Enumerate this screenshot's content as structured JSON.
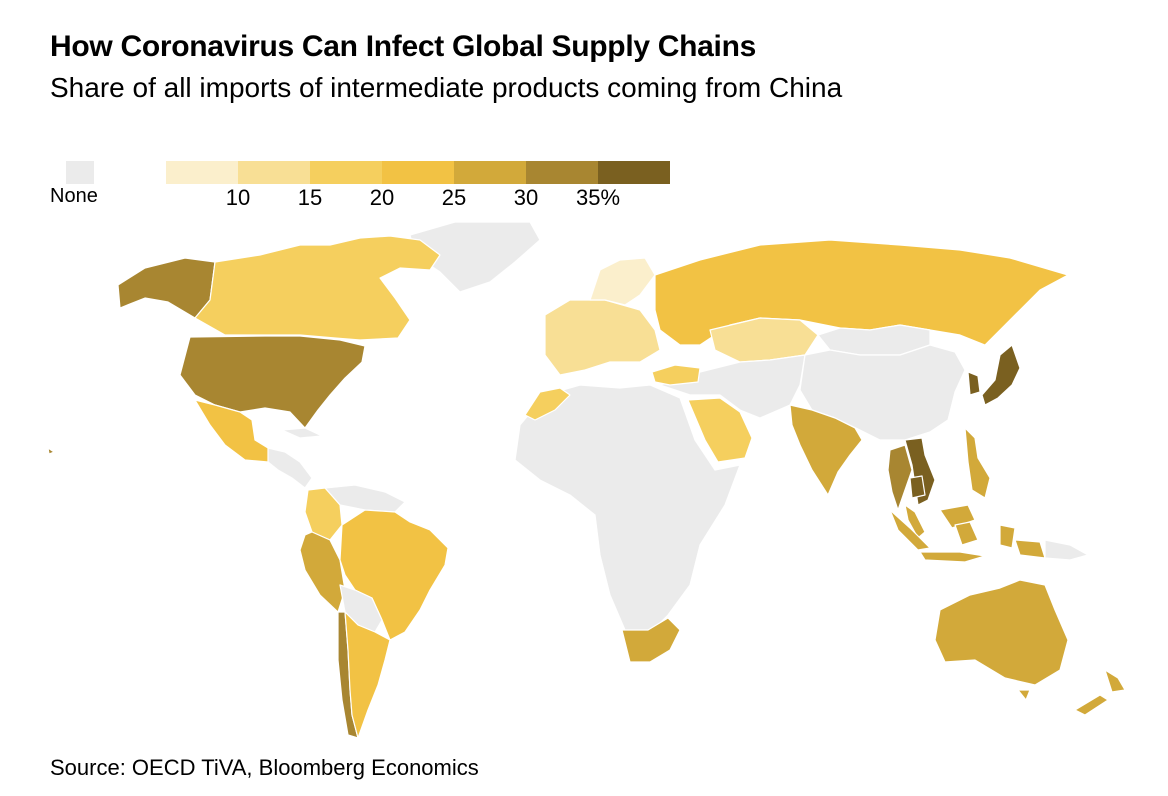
{
  "title": "How Coronavirus Can Infect Global Supply Chains",
  "subtitle": "Share of all imports of intermediate products coming from China",
  "source": "Source: OECD TiVA, Bloomberg Economics",
  "legend": {
    "none_label": "None",
    "none_color": "#ebebeb",
    "bins": [
      {
        "from": 5,
        "to": 10,
        "color": "#fbefcc"
      },
      {
        "from": 10,
        "to": 15,
        "color": "#f8df95"
      },
      {
        "from": 15,
        "to": 20,
        "color": "#f5cf5e"
      },
      {
        "from": 20,
        "to": 25,
        "color": "#f2c244"
      },
      {
        "from": 25,
        "to": 30,
        "color": "#d2a93a"
      },
      {
        "from": 30,
        "to": 35,
        "color": "#a88631"
      },
      {
        "from": 35,
        "to": 40,
        "color": "#7a6020"
      }
    ],
    "tick_labels": [
      "10",
      "15",
      "20",
      "25",
      "30",
      "35%"
    ]
  },
  "regions": [
    {
      "name": "Alaska (US)",
      "color": "#a88631"
    },
    {
      "name": "Canada",
      "color": "#f5cf5e"
    },
    {
      "name": "United States",
      "color": "#a88631"
    },
    {
      "name": "Mexico",
      "color": "#f2c244"
    },
    {
      "name": "Colombia",
      "color": "#f5cf5e"
    },
    {
      "name": "Peru",
      "color": "#d2a93a"
    },
    {
      "name": "Brazil",
      "color": "#f2c244"
    },
    {
      "name": "Chile",
      "color": "#a88631"
    },
    {
      "name": "Argentina",
      "color": "#f2c244"
    },
    {
      "name": "Europe",
      "color": "#f8df95"
    },
    {
      "name": "Nordics",
      "color": "#fbefcc"
    },
    {
      "name": "Russia",
      "color": "#f2c244"
    },
    {
      "name": "Kazakhstan",
      "color": "#f8df95"
    },
    {
      "name": "Turkey",
      "color": "#f5cf5e"
    },
    {
      "name": "Saudi Arabia",
      "color": "#f5cf5e"
    },
    {
      "name": "India",
      "color": "#d2a93a"
    },
    {
      "name": "Vietnam",
      "color": "#7a6020"
    },
    {
      "name": "Thailand",
      "color": "#a88631"
    },
    {
      "name": "Cambodia",
      "color": "#7a6020"
    },
    {
      "name": "Malaysia",
      "color": "#d2a93a"
    },
    {
      "name": "Indonesia",
      "color": "#d2a93a"
    },
    {
      "name": "Philippines",
      "color": "#d2a93a"
    },
    {
      "name": "South Korea",
      "color": "#7a6020"
    },
    {
      "name": "Japan",
      "color": "#7a6020"
    },
    {
      "name": "Australia",
      "color": "#d2a93a"
    },
    {
      "name": "New Zealand",
      "color": "#d2a93a"
    },
    {
      "name": "South Africa",
      "color": "#d2a93a"
    },
    {
      "name": "Morocco",
      "color": "#f5cf5e"
    },
    {
      "name": "Greenland",
      "color": "#ebebeb"
    },
    {
      "name": "Africa",
      "color": "#ebebeb"
    },
    {
      "name": "China",
      "color": "#ebebeb"
    },
    {
      "name": "Middle East & Central Asia",
      "color": "#ebebeb"
    },
    {
      "name": "Mongolia",
      "color": "#ebebeb"
    },
    {
      "name": "Central America",
      "color": "#ebebeb"
    },
    {
      "name": "Venezuela & Guianas",
      "color": "#ebebeb"
    },
    {
      "name": "Bolivia & Paraguay",
      "color": "#ebebeb"
    },
    {
      "name": "Papua New Guinea",
      "color": "#ebebeb"
    }
  ]
}
